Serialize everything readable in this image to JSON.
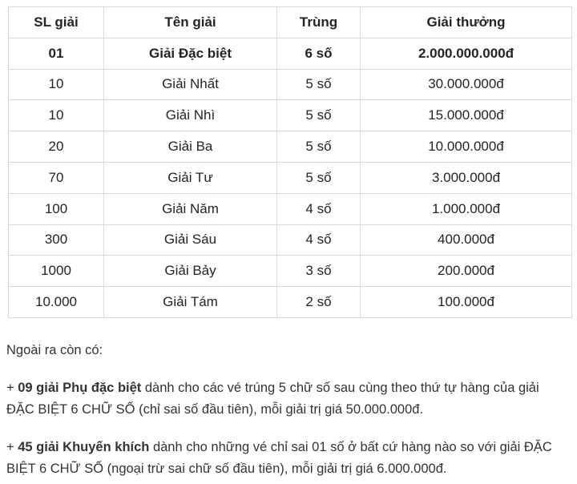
{
  "table": {
    "headers": {
      "quantity": "SL giải",
      "name": "Tên giải",
      "match": "Trùng",
      "prize": "Giải thưởng"
    },
    "rows": [
      {
        "quantity": "01",
        "name": "Giải Đặc biệt",
        "match": "6 số",
        "prize": "2.000.000.000đ"
      },
      {
        "quantity": "10",
        "name": "Giải Nhất",
        "match": "5 số",
        "prize": "30.000.000đ"
      },
      {
        "quantity": "10",
        "name": "Giải Nhì",
        "match": "5 số",
        "prize": "15.000.000đ"
      },
      {
        "quantity": "20",
        "name": "Giải Ba",
        "match": "5 số",
        "prize": "10.000.000đ"
      },
      {
        "quantity": "70",
        "name": "Giải Tư",
        "match": "5 số",
        "prize": "3.000.000đ"
      },
      {
        "quantity": "100",
        "name": "Giải Năm",
        "match": "4 số",
        "prize": "1.000.000đ"
      },
      {
        "quantity": "300",
        "name": "Giải Sáu",
        "match": "4 số",
        "prize": "400.000đ"
      },
      {
        "quantity": "1000",
        "name": "Giải Bảy",
        "match": "3 số",
        "prize": "200.000đ"
      },
      {
        "quantity": "10.000",
        "name": "Giải Tám",
        "match": "2 số",
        "prize": "100.000đ"
      }
    ]
  },
  "notes": {
    "intro": "Ngoài ra còn có:",
    "items": [
      {
        "lead": "+ ",
        "bold": "09 giải Phụ đặc biệt",
        "rest": " dành cho các vé trúng 5 chữ số sau cùng theo thứ tự hàng của giải ĐẶC BIỆT 6 CHỮ SỐ (chỉ sai số đầu tiên), mỗi giải trị giá 50.000.000đ."
      },
      {
        "lead": "+ ",
        "bold": "45 giải Khuyến khích",
        "rest": " dành cho những vé chỉ sai 01 số ở bất cứ hàng nào so với giải ĐẶC BIỆT 6 CHỮ SỐ (ngoại trừ sai chữ số đầu tiên), mỗi giải trị giá 6.000.000đ."
      }
    ]
  },
  "colors": {
    "table_border": "#d9d9d9",
    "table_text": "#242424",
    "notes_text": "#333333",
    "background": "#ffffff"
  }
}
